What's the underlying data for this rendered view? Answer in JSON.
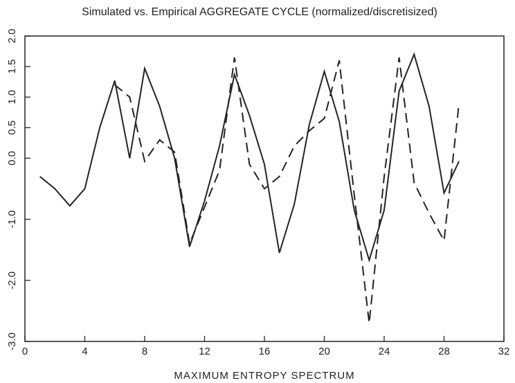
{
  "chart_data": {
    "type": "line",
    "title": "Simulated vs. Empirical AGGREGATE CYCLE (normalized/discretisized)",
    "x_label": "MAXIMUM ENTROPY SPECTRUM",
    "x": [
      1,
      2,
      3,
      4,
      5,
      6,
      7,
      8,
      9,
      10,
      11,
      12,
      13,
      14,
      15,
      16,
      17,
      18,
      19,
      20,
      21,
      22,
      23,
      24,
      25,
      26,
      27,
      28,
      29
    ],
    "series": [
      {
        "color": "#222222",
        "dash": "solid",
        "values": [
          -0.3,
          -0.5,
          -0.78,
          -0.5,
          0.5,
          1.27,
          0.0,
          1.47,
          0.85,
          0.0,
          -1.45,
          -0.7,
          0.2,
          1.37,
          0.7,
          -0.1,
          -1.55,
          -0.75,
          0.55,
          1.42,
          0.6,
          -0.85,
          -1.67,
          -0.85,
          1.1,
          1.7,
          0.85,
          -0.57,
          -0.05
        ]
      },
      {
        "color": "#222222",
        "dash": "dashed",
        "values": [
          null,
          null,
          null,
          null,
          null,
          1.2,
          1.0,
          -0.05,
          0.3,
          0.1,
          -1.4,
          -0.8,
          -0.2,
          1.65,
          -0.1,
          -0.5,
          -0.3,
          0.2,
          0.45,
          0.65,
          1.6,
          -0.6,
          -2.7,
          -0.3,
          1.65,
          -0.4,
          -0.9,
          -1.35,
          0.9
        ]
      }
    ],
    "xlim": [
      0,
      32
    ],
    "xticks": [
      0,
      4,
      8,
      12,
      16,
      20,
      24,
      28,
      32
    ],
    "ylim": [
      -3,
      2
    ],
    "yticks": [
      {
        "value": 2,
        "label": "2.0"
      },
      {
        "value": 1.5,
        "label": "1.5"
      },
      {
        "value": 1,
        "label": "1.0"
      },
      {
        "value": 0.5,
        "label": "0.5"
      },
      {
        "value": 0,
        "label": "0.0"
      },
      {
        "value": -1,
        "label": "-1.0"
      },
      {
        "value": -2,
        "label": "-2.0"
      },
      {
        "value": -3,
        "label": "-3.0"
      }
    ],
    "grid": false
  }
}
